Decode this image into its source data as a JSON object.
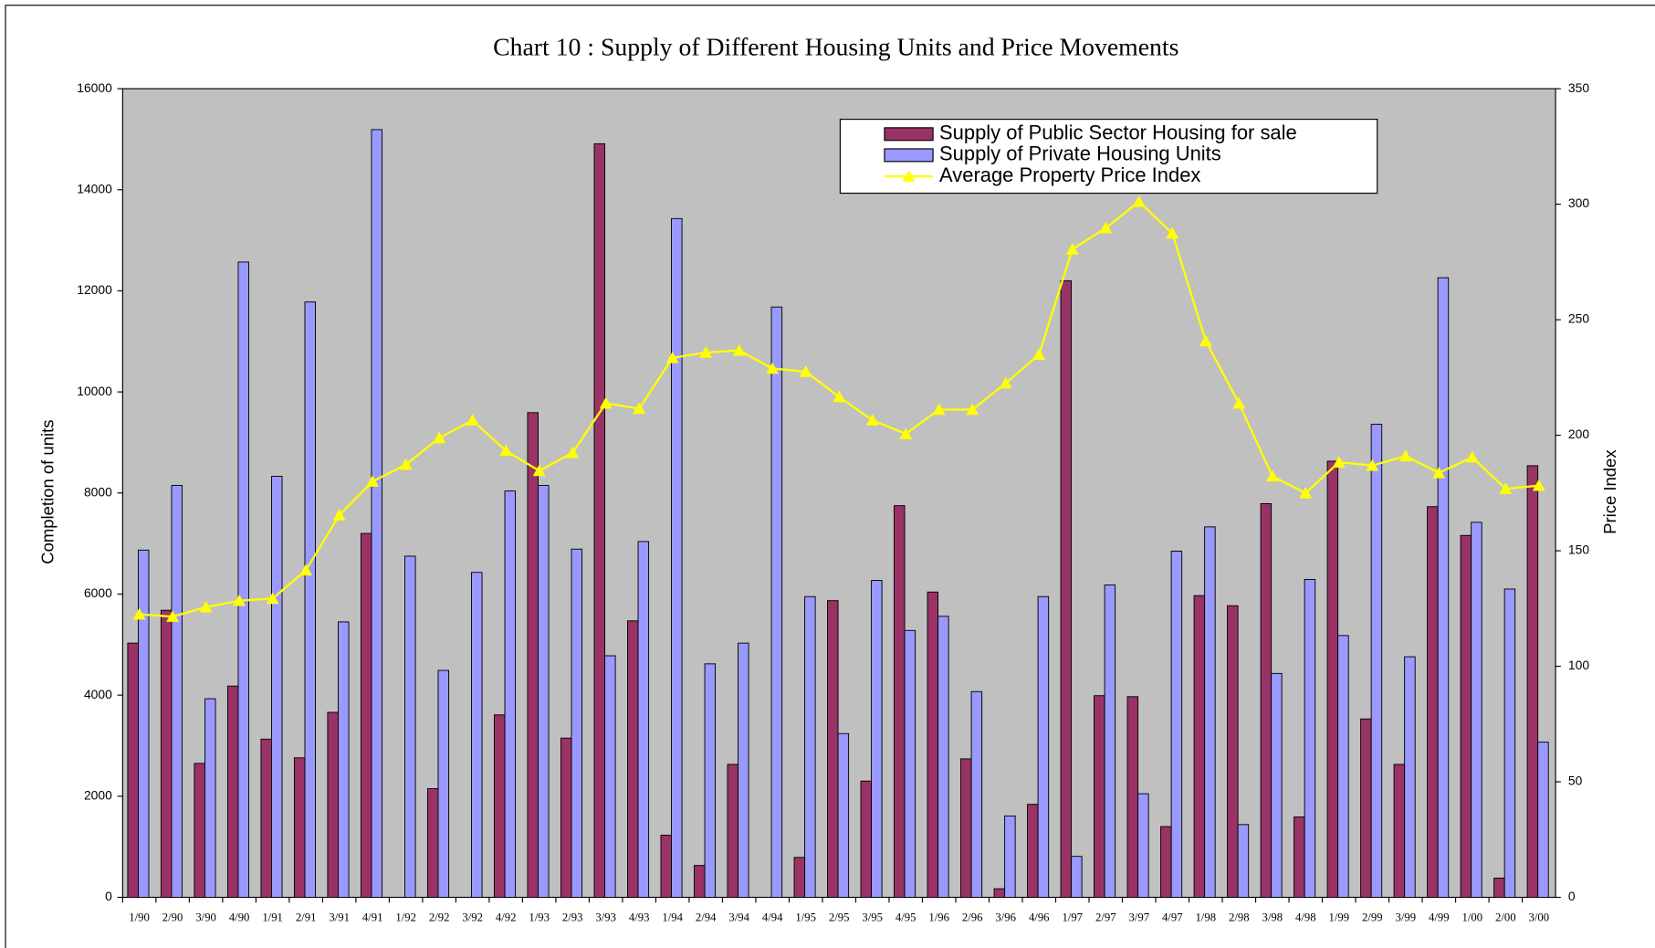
{
  "chart_data": {
    "type": "bar",
    "title": "Chart 10 : Supply of Different Housing Units and Price Movements",
    "y_label": "Completion of units",
    "y2_label": "Price Index",
    "categories": [
      "1/90",
      "2/90",
      "3/90",
      "4/90",
      "1/91",
      "2/91",
      "3/91",
      "4/91",
      "1/92",
      "2/92",
      "3/92",
      "4/92",
      "1/93",
      "2/93",
      "3/93",
      "4/93",
      "1/94",
      "2/94",
      "3/94",
      "4/94",
      "1/95",
      "2/95",
      "3/95",
      "4/95",
      "1/96",
      "2/96",
      "3/96",
      "4/96",
      "1/97",
      "2/97",
      "3/97",
      "4/97",
      "1/98",
      "2/98",
      "3/98",
      "4/98",
      "1/99",
      "2/99",
      "3/99",
      "4/99",
      "1/00",
      "2/00",
      "3/00"
    ],
    "series": [
      {
        "name": "Supply of Public Sector Housing for sale",
        "type": "bar",
        "color": "#993366",
        "values": [
          5030,
          5680,
          2650,
          4180,
          3130,
          2760,
          3660,
          7200,
          0,
          2150,
          0,
          3610,
          9590,
          3150,
          14910,
          5470,
          1230,
          630,
          2630,
          0,
          790,
          5870,
          2300,
          7750,
          6040,
          2740,
          170,
          1840,
          12200,
          3990,
          3970,
          1400,
          5970,
          5770,
          7790,
          1590,
          8630,
          3530,
          2630,
          7730,
          7160,
          380,
          8540
        ]
      },
      {
        "name": "Supply of Private Housing Units",
        "type": "bar",
        "color": "#9999ff",
        "values": [
          6870,
          8150,
          3930,
          12570,
          8330,
          11780,
          5450,
          15190,
          6750,
          4490,
          6430,
          8040,
          8150,
          6890,
          4780,
          7040,
          13430,
          4620,
          5030,
          11680,
          5950,
          3240,
          6270,
          5280,
          5560,
          4070,
          1610,
          5950,
          810,
          6180,
          2050,
          6850,
          7330,
          1440,
          4430,
          6290,
          5180,
          9360,
          4760,
          12260,
          7420,
          6100,
          3070
        ]
      },
      {
        "name": "Average Property Price Index",
        "type": "line",
        "axis": "y2",
        "color": "#ffff00",
        "values": [
          122.5,
          121.5,
          125.6,
          128.4,
          129.3,
          141.6,
          165.4,
          180,
          187.3,
          198.8,
          206.5,
          193.3,
          184.6,
          192.4,
          213.8,
          211.5,
          233.5,
          235.8,
          236.7,
          228.9,
          227.5,
          216.6,
          206.5,
          200.6,
          211.1,
          211.1,
          222.5,
          234.9,
          280.5,
          289.7,
          301.1,
          287.4,
          240.8,
          213.8,
          182.3,
          175,
          188.3,
          186.9,
          191,
          183.7,
          190.5,
          176.8,
          178.2
        ]
      }
    ],
    "ylim": [
      0,
      16000
    ],
    "yticks": [
      0,
      2000,
      4000,
      6000,
      8000,
      10000,
      12000,
      14000,
      16000
    ],
    "y2lim": [
      0,
      350
    ],
    "y2ticks": [
      0,
      50,
      100,
      150,
      200,
      250,
      300,
      350
    ],
    "legend": "top-right",
    "background": "#c0c0c0"
  }
}
